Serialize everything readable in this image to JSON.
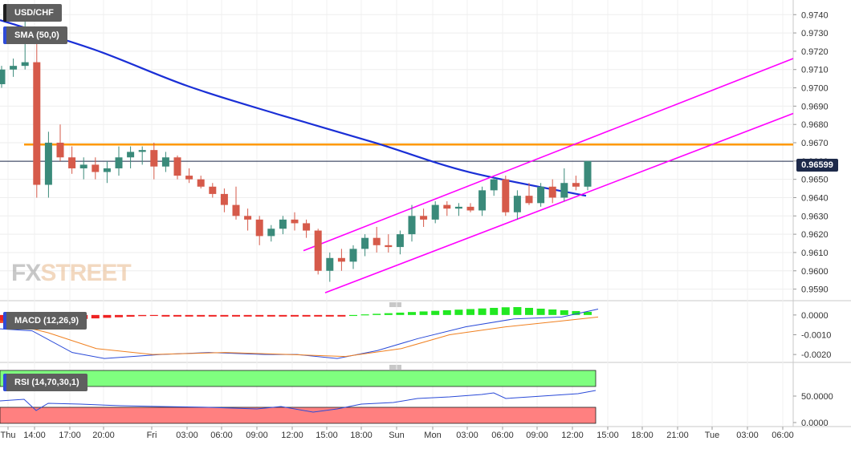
{
  "chart_data": {
    "type": "candlestick",
    "symbol": "USD/CHF",
    "last_price": "0.96599",
    "x_tick_labels": [
      "Thu",
      "14:00",
      "17:00",
      "20:00",
      "Fri",
      "03:00",
      "06:00",
      "09:00",
      "12:00",
      "15:00",
      "18:00",
      "Sun",
      "Mon",
      "03:00",
      "06:00",
      "09:00",
      "12:00",
      "15:00",
      "18:00",
      "21:00",
      "Tue",
      "03:00",
      "06:00"
    ],
    "price_axis": {
      "ylim": [
        0.9585,
        0.9748
      ],
      "ticks": [
        "0.9590",
        "0.9600",
        "0.9610",
        "0.9620",
        "0.9630",
        "0.9640",
        "0.9650",
        "0.9660",
        "0.9670",
        "0.9680",
        "0.9690",
        "0.9700",
        "0.9710",
        "0.9720",
        "0.9730",
        "0.9740"
      ]
    },
    "candles": [
      [
        0.9702,
        0.9712,
        0.97,
        0.971
      ],
      [
        0.971,
        0.9716,
        0.9706,
        0.9712
      ],
      [
        0.9712,
        0.9742,
        0.971,
        0.9714
      ],
      [
        0.9714,
        0.9724,
        0.964,
        0.9647
      ],
      [
        0.9647,
        0.9676,
        0.964,
        0.967
      ],
      [
        0.967,
        0.968,
        0.966,
        0.9662
      ],
      [
        0.9662,
        0.9668,
        0.9653,
        0.9656
      ],
      [
        0.9656,
        0.9662,
        0.965,
        0.9658
      ],
      [
        0.9658,
        0.9662,
        0.965,
        0.9654
      ],
      [
        0.9654,
        0.966,
        0.9648,
        0.9656
      ],
      [
        0.9656,
        0.9668,
        0.9652,
        0.9662
      ],
      [
        0.9662,
        0.9668,
        0.9656,
        0.9665
      ],
      [
        0.9665,
        0.9668,
        0.9658,
        0.9666
      ],
      [
        0.9666,
        0.967,
        0.965,
        0.9657
      ],
      [
        0.9657,
        0.9665,
        0.9654,
        0.9662
      ],
      [
        0.9662,
        0.9663,
        0.965,
        0.9652
      ],
      [
        0.9652,
        0.9656,
        0.9648,
        0.965
      ],
      [
        0.965,
        0.9652,
        0.9645,
        0.9646
      ],
      [
        0.9646,
        0.9648,
        0.964,
        0.9642
      ],
      [
        0.9642,
        0.9645,
        0.9632,
        0.9636
      ],
      [
        0.9636,
        0.9646,
        0.9628,
        0.963
      ],
      [
        0.963,
        0.9634,
        0.9622,
        0.9628
      ],
      [
        0.9628,
        0.963,
        0.9614,
        0.9619
      ],
      [
        0.9619,
        0.9625,
        0.9616,
        0.9623
      ],
      [
        0.9623,
        0.963,
        0.962,
        0.9628
      ],
      [
        0.9628,
        0.9632,
        0.9622,
        0.9626
      ],
      [
        0.9626,
        0.9628,
        0.9618,
        0.9622
      ],
      [
        0.9622,
        0.9623,
        0.9598,
        0.96
      ],
      [
        0.96,
        0.961,
        0.9594,
        0.9607
      ],
      [
        0.9607,
        0.9612,
        0.96,
        0.9605
      ],
      [
        0.9605,
        0.9614,
        0.9601,
        0.9612
      ],
      [
        0.9612,
        0.962,
        0.9608,
        0.9618
      ],
      [
        0.9618,
        0.9624,
        0.961,
        0.9614
      ],
      [
        0.9614,
        0.962,
        0.961,
        0.9613
      ],
      [
        0.9613,
        0.9622,
        0.9609,
        0.962
      ],
      [
        0.962,
        0.9636,
        0.9616,
        0.963
      ],
      [
        0.963,
        0.9634,
        0.9624,
        0.9628
      ],
      [
        0.9628,
        0.9638,
        0.9626,
        0.9636
      ],
      [
        0.9636,
        0.9638,
        0.963,
        0.9634
      ],
      [
        0.9634,
        0.9637,
        0.963,
        0.9635
      ],
      [
        0.9635,
        0.9637,
        0.9632,
        0.9633
      ],
      [
        0.9633,
        0.9646,
        0.963,
        0.9644
      ],
      [
        0.9644,
        0.9651,
        0.9641,
        0.965
      ],
      [
        0.965,
        0.9652,
        0.963,
        0.9632
      ],
      [
        0.9632,
        0.9644,
        0.9628,
        0.9641
      ],
      [
        0.9641,
        0.9648,
        0.9636,
        0.9637
      ],
      [
        0.9637,
        0.9648,
        0.9635,
        0.9646
      ],
      [
        0.9646,
        0.965,
        0.9637,
        0.964
      ],
      [
        0.964,
        0.9656,
        0.9638,
        0.9648
      ],
      [
        0.9648,
        0.9652,
        0.9644,
        0.9646
      ],
      [
        0.9646,
        0.966,
        0.9644,
        0.966
      ]
    ],
    "sma": {
      "label": "SMA (50,0)",
      "color": "#1a2fd6",
      "values": [
        0.9737,
        0.9721,
        0.9701,
        0.9685,
        0.967,
        0.9654,
        0.9641
      ]
    },
    "horizontal_level": {
      "value": 0.9669,
      "color": "#ff9900"
    },
    "channel_lines": {
      "color": "#ff00ff"
    },
    "macd": {
      "label": "MACD (12,26,9)",
      "ticks": [
        "0.0000",
        "-0.0010",
        "-0.0020"
      ],
      "ylim": [
        -0.0024,
        0.0004
      ]
    },
    "rsi": {
      "label": "RSI (14,70,30,1)",
      "ticks": [
        "50.0000",
        "0.0000"
      ]
    },
    "colors": {
      "up": "#3a8a7a",
      "down": "#d65a4a",
      "hist_up": "#22e822",
      "hist_down": "#ee2222"
    }
  },
  "watermark": {
    "fx": "FX",
    "street": "STREET"
  }
}
